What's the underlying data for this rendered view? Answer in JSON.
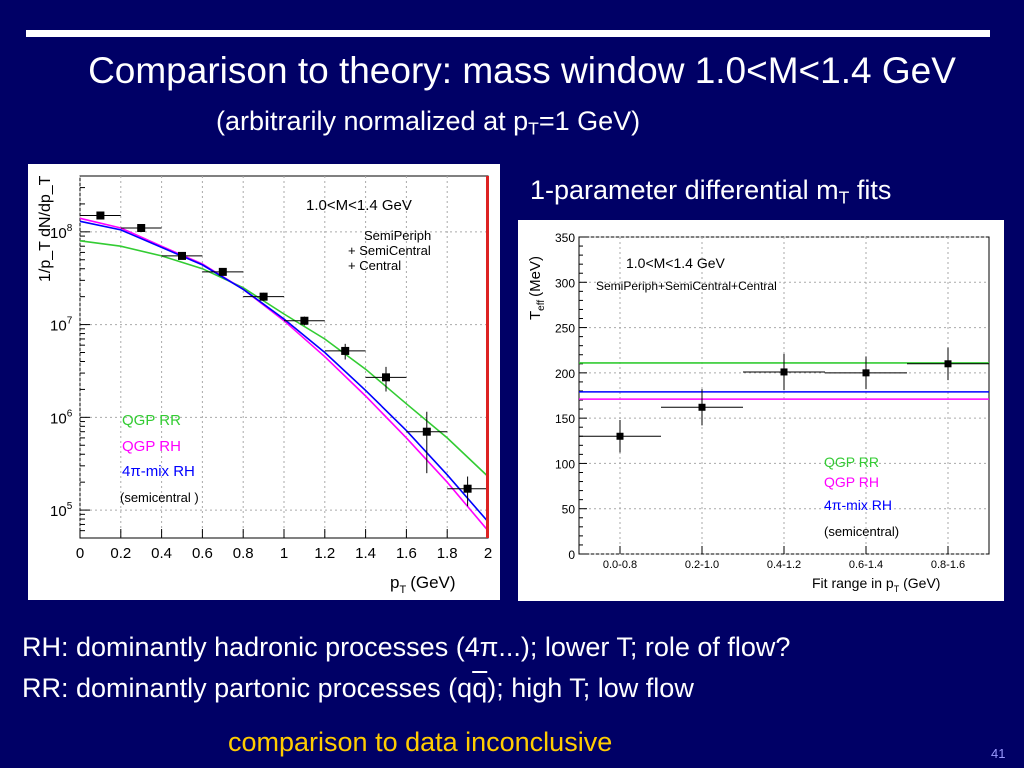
{
  "slide": {
    "title": "Comparison to theory: mass window 1.0<M<1.4 GeV",
    "subtitle_pre": "(arbitrarily normalized at p",
    "subtitle_sub": "T",
    "subtitle_post": "=1 GeV)",
    "fits_title_pre": "1-parameter differential m",
    "fits_title_sub": "T",
    "fits_title_post": " fits",
    "bullet1": "RH: dominantly hadronic processes (4π...);  lower T; role of flow?",
    "bullet2_pre": "RR: dominantly partonic processes (q",
    "bullet2_bar": "q",
    "bullet2_post": ");      high T;  low flow",
    "conclusion": "comparison to data inconclusive",
    "page_number": "41"
  },
  "colors": {
    "background": "#000066",
    "qgp_rr": "#33cc33",
    "qgp_rh": "#ff00ff",
    "mix_rh": "#0000ff",
    "conclusion": "#ffcc00"
  },
  "chart_data": [
    {
      "type": "scatter",
      "log_y": true,
      "grid": true,
      "xlabel_main": "p",
      "xlabel_sub": "T",
      "xlabel_unit": "(GeV)",
      "ylabel": "1/p_T dN/dp_T",
      "xlim": [
        0,
        2
      ],
      "ylim": [
        50000,
        400000000
      ],
      "x_ticks": [
        "0",
        "0.2",
        "0.4",
        "0.6",
        "0.8",
        "1",
        "1.2",
        "1.4",
        "1.6",
        "1.8",
        "2"
      ],
      "y_ticks": [
        {
          "base": "10",
          "exp": "5",
          "value": 100000
        },
        {
          "base": "10",
          "exp": "6",
          "value": 1000000
        },
        {
          "base": "10",
          "exp": "7",
          "value": 10000000
        },
        {
          "base": "10",
          "exp": "8",
          "value": 100000000
        }
      ],
      "annotation": "1.0<M<1.4 GeV",
      "annotation2": [
        "SemiPeriph",
        "+ SemiCentral",
        "+ Central"
      ],
      "legend": [
        {
          "label_pre": "QGP RR",
          "color": "#33cc33"
        },
        {
          "label_pre": "QGP RH",
          "color": "#ff00ff"
        },
        {
          "label_pre": "4",
          "symbol": "π",
          "label_post": "-mix RH",
          "color": "#0000ff"
        }
      ],
      "legend_note": "(semicentral )",
      "data": [
        {
          "x": 0.1,
          "y": 150000000,
          "yerr": 0
        },
        {
          "x": 0.3,
          "y": 110000000,
          "yerr": 0
        },
        {
          "x": 0.5,
          "y": 55000000,
          "yerr": 0
        },
        {
          "x": 0.7,
          "y": 37000000,
          "yerr": 3000000
        },
        {
          "x": 0.9,
          "y": 20000000,
          "yerr": 2000000
        },
        {
          "x": 1.1,
          "y": 11000000,
          "yerr": 1200000
        },
        {
          "x": 1.3,
          "y": 5200000,
          "yerr": 1000000
        },
        {
          "x": 1.5,
          "y": 2700000,
          "yerr": 800000
        },
        {
          "x": 1.7,
          "y": 700000,
          "yerr": 450000
        },
        {
          "x": 1.9,
          "y": 170000,
          "yerr": 60000
        }
      ],
      "series": [
        {
          "name": "QGP RR",
          "color": "#33cc33",
          "x": [
            0,
            0.2,
            0.4,
            0.6,
            0.8,
            1.0,
            1.2,
            1.4,
            1.6,
            1.8,
            2.0
          ],
          "y": [
            80000000,
            70000000,
            55000000,
            40000000,
            25000000,
            13000000,
            7000000,
            3300000,
            1400000,
            600000,
            230000
          ]
        },
        {
          "name": "QGP RH",
          "color": "#ff00ff",
          "x": [
            0,
            0.2,
            0.4,
            0.6,
            0.8,
            1.0,
            1.2,
            1.4,
            1.6,
            1.8,
            2.0
          ],
          "y": [
            140000000,
            110000000,
            70000000,
            45000000,
            24000000,
            11000000,
            4500000,
            1700000,
            600000,
            200000,
            60000
          ]
        },
        {
          "name": "4π-mix RH",
          "color": "#0000ff",
          "x": [
            0,
            0.2,
            0.4,
            0.6,
            0.8,
            1.0,
            1.2,
            1.4,
            1.6,
            1.8,
            2.0
          ],
          "y": [
            130000000,
            105000000,
            68000000,
            44000000,
            24000000,
            11500000,
            5000000,
            1950000,
            720000,
            240000,
            75000
          ]
        }
      ]
    },
    {
      "type": "scatter",
      "grid": true,
      "ylabel_main": "T",
      "ylabel_sub": "eff",
      "ylabel_unit": "(MeV)",
      "xlabel_pre": "Fit range in p",
      "xlabel_sub": "T",
      "xlabel_post": " (GeV)",
      "ylim": [
        0,
        350
      ],
      "y_ticks": [
        "0",
        "50",
        "100",
        "150",
        "200",
        "250",
        "300",
        "350"
      ],
      "categories": [
        "0.0-0.8",
        "0.2-1.0",
        "0.4-1.2",
        "0.6-1.4",
        "0.8-1.6"
      ],
      "annotation": "1.0<M<1.4 GeV",
      "annotation2": "SemiPeriph+SemiCentral+Central",
      "legend": [
        {
          "label_pre": "QGP RR",
          "color": "#33cc33"
        },
        {
          "label_pre": "QGP RH",
          "color": "#ff00ff"
        },
        {
          "label_pre": "4",
          "symbol": "π",
          "label_post": "-mix RH",
          "color": "#0000ff"
        }
      ],
      "legend_note": "(semicentral)",
      "values": [
        130,
        162,
        201,
        200,
        210
      ],
      "errors": [
        18,
        20,
        20,
        18,
        18
      ],
      "hlines": [
        {
          "name": "QGP RR",
          "value": 211,
          "color": "#33cc33"
        },
        {
          "name": "4π-mix RH",
          "value": 179,
          "color": "#0000ff"
        },
        {
          "name": "QGP RH",
          "value": 171,
          "color": "#ff00ff"
        }
      ]
    }
  ]
}
